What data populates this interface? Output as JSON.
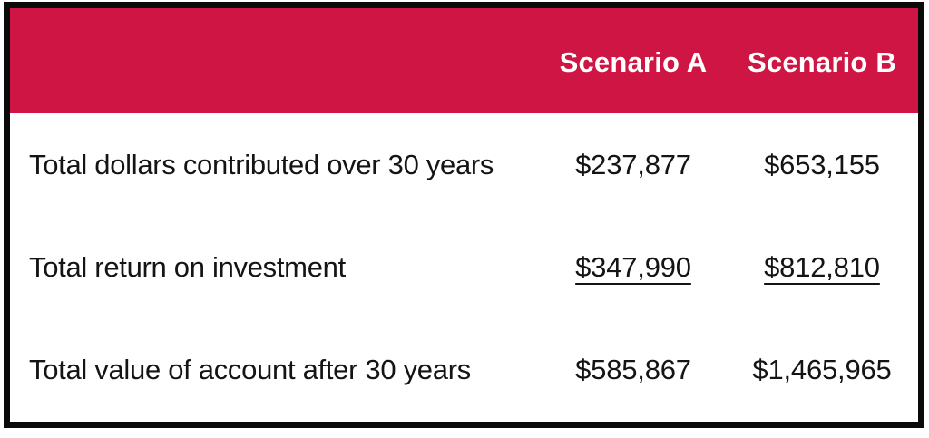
{
  "table": {
    "header": {
      "col_a": "Scenario A",
      "col_b": "Scenario B"
    },
    "rows": [
      {
        "label": "Total dollars contributed over 30 years",
        "a": "$237,877",
        "b": "$653,155",
        "underline": false
      },
      {
        "label": "Total return on investment",
        "a": "$347,990",
        "b": "$812,810",
        "underline": true
      },
      {
        "label": "Total value of account after 30 years",
        "a": "$585,867",
        "b": "$1,465,965",
        "underline": false
      }
    ],
    "colors": {
      "header_bg": "#CE1543",
      "header_text": "#FFFFFF",
      "border": "#0A0A0A",
      "body_text": "#141414",
      "body_bg": "#FFFFFF"
    }
  },
  "chart_data": {
    "type": "table",
    "title": "",
    "columns": [
      "",
      "Scenario A",
      "Scenario B"
    ],
    "rows": [
      {
        "label": "Total dollars contributed over 30 years",
        "scenario_a": 237877,
        "scenario_b": 653155
      },
      {
        "label": "Total return on investment",
        "scenario_a": 347990,
        "scenario_b": 812810
      },
      {
        "label": "Total value of account after 30 years",
        "scenario_a": 585867,
        "scenario_b": 1465965
      }
    ],
    "layout_hints": {
      "header_style": "solid crimson band, white bold text",
      "underlined_row_index": 1,
      "gridlines": "none",
      "outer_border": "thick black"
    }
  }
}
